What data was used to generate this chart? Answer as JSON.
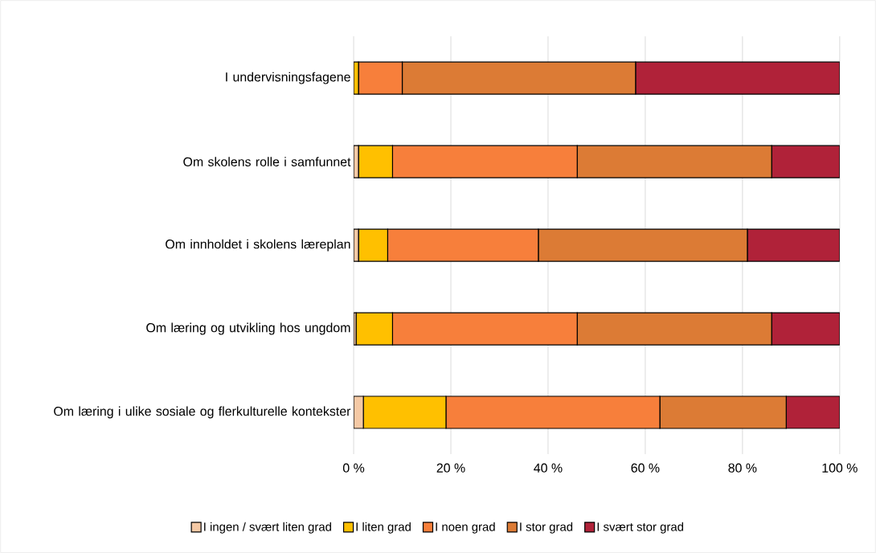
{
  "chart_data": {
    "type": "bar",
    "orientation": "horizontal",
    "stacked": true,
    "categories": [
      "I undervisningsfagene",
      "Om skolens rolle i samfunnet",
      "Om innholdet i skolens læreplan",
      "Om læring og utvikling hos ungdom",
      "Om læring i ulike sosiale og flerkulturelle kontekster"
    ],
    "series": [
      {
        "name": "I ingen / svært liten grad",
        "color": "#f5c9a5",
        "values": [
          0,
          1,
          1,
          0.5,
          2
        ]
      },
      {
        "name": "I liten grad",
        "color": "#ffc000",
        "values": [
          1,
          7,
          6,
          7.5,
          17
        ]
      },
      {
        "name": "I noen grad",
        "color": "#f77f3b",
        "values": [
          9,
          38,
          31,
          38,
          44
        ]
      },
      {
        "name": "I stor grad",
        "color": "#dc7b35",
        "values": [
          48,
          40,
          43,
          40,
          26
        ]
      },
      {
        "name": "I svært stor grad",
        "color": "#b02239",
        "values": [
          42,
          14,
          19,
          14,
          11
        ]
      }
    ],
    "xlim": [
      0,
      100
    ],
    "xticks": [
      {
        "value": 0,
        "label": "0 %"
      },
      {
        "value": 20,
        "label": "20 %"
      },
      {
        "value": 40,
        "label": "40 %"
      },
      {
        "value": 60,
        "label": "60 %"
      },
      {
        "value": 80,
        "label": "80 %"
      },
      {
        "value": 100,
        "label": "100 %"
      }
    ],
    "grid": "x",
    "legend": "bottom"
  }
}
